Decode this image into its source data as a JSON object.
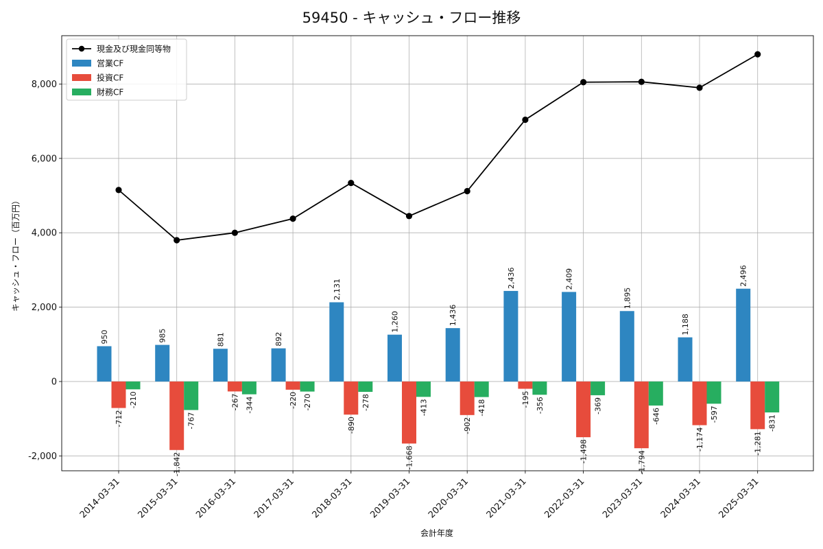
{
  "chart_data": {
    "type": "bar",
    "title": "59450 - キャッシュ・フロー推移",
    "xlabel": "会計年度",
    "ylabel": "キャッシュ・フロー（百万円）",
    "categories": [
      "2014-03-31",
      "2015-03-31",
      "2016-03-31",
      "2017-03-31",
      "2018-03-31",
      "2019-03-31",
      "2020-03-31",
      "2021-03-31",
      "2022-03-31",
      "2023-03-31",
      "2024-03-31",
      "2025-03-31"
    ],
    "ylim": [
      -2400,
      9300
    ],
    "yticks": [
      -2000,
      0,
      2000,
      4000,
      6000,
      8000
    ],
    "ytick_labels": [
      "-2,000",
      "0",
      "2,000",
      "4,000",
      "6,000",
      "8,000"
    ],
    "grid": true,
    "legend_position": "top-left",
    "series": [
      {
        "name": "営業CF",
        "kind": "bar",
        "color": "#2e86c1",
        "values": [
          950,
          985,
          881,
          892,
          2131,
          1260,
          1436,
          2436,
          2409,
          1895,
          1188,
          2496
        ],
        "labels": [
          "950",
          "985",
          "881",
          "892",
          "2,131",
          "1,260",
          "1,436",
          "2,436",
          "2,409",
          "1,895",
          "1,188",
          "2,496"
        ]
      },
      {
        "name": "投資CF",
        "kind": "bar",
        "color": "#e74c3c",
        "values": [
          -712,
          -1842,
          -267,
          -220,
          -890,
          -1668,
          -902,
          -195,
          -1498,
          -1794,
          -1174,
          -1281
        ],
        "labels": [
          "-712",
          "-1,842",
          "-267",
          "-220",
          "-890",
          "-1,668",
          "-902",
          "-195",
          "-1,498",
          "-1,794",
          "-1,174",
          "-1,281"
        ]
      },
      {
        "name": "財務CF",
        "kind": "bar",
        "color": "#27ae60",
        "values": [
          -210,
          -767,
          -344,
          -270,
          -278,
          -413,
          -418,
          -356,
          -369,
          -646,
          -597,
          -831
        ],
        "labels": [
          "-210",
          "-767",
          "-344",
          "-270",
          "-278",
          "-413",
          "-418",
          "-356",
          "-369",
          "-646",
          "-597",
          "-831"
        ]
      },
      {
        "name": "現金及び現金同等物",
        "kind": "line",
        "color": "#000000",
        "values": [
          5150,
          3800,
          4000,
          4380,
          5340,
          4450,
          5120,
          7040,
          8050,
          8060,
          7900,
          8800
        ]
      }
    ]
  }
}
